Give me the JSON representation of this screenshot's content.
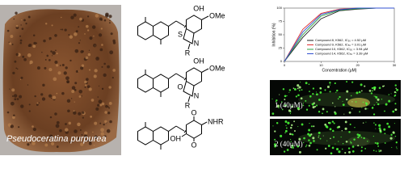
{
  "photo": {
    "caption": "Pseudoceratina purpurea"
  },
  "structures": [
    {
      "labels": [
        "OH",
        "OMe",
        "S",
        "N",
        "R"
      ]
    },
    {
      "labels": [
        "OH",
        "OMe",
        "O",
        "N",
        "R"
      ]
    },
    {
      "labels": [
        "O",
        "NHR",
        "OH",
        "O"
      ]
    }
  ],
  "chart_data": {
    "type": "line",
    "x_label": "Concentration (μM)",
    "y_label": "Inhibition (%)",
    "x": [
      0,
      5,
      10,
      15,
      20,
      25,
      30
    ],
    "xlim": [
      0,
      30
    ],
    "xticks": [
      0,
      10,
      20,
      30
    ],
    "ylim": [
      0,
      100
    ],
    "yticks": [
      0,
      25,
      50,
      75,
      100
    ],
    "legend": "lower right",
    "series": [
      {
        "name": "Compound 8, K562, IC₅₀ = 4.52 μM",
        "color": "#222222",
        "values": [
          0,
          45,
          80,
          95,
          98,
          100,
          100
        ]
      },
      {
        "name": "Compound 9, K562, IC₅₀ = 3.01 μM",
        "color": "#e03030",
        "values": [
          0,
          60,
          90,
          98,
          100,
          100,
          100
        ]
      },
      {
        "name": "Compound 10, K562, IC₅₀ = 3.94 μM",
        "color": "#30a040",
        "values": [
          0,
          50,
          85,
          96,
          99,
          100,
          100
        ]
      },
      {
        "name": "Compound 14, K562, IC₅₀ = 3.39 μM",
        "color": "#3050d0",
        "values": [
          0,
          55,
          88,
          97,
          100,
          100,
          100
        ]
      }
    ]
  },
  "fluorescence": [
    {
      "label": "1 (40μM)"
    },
    {
      "label": "2 (40μM)"
    }
  ]
}
